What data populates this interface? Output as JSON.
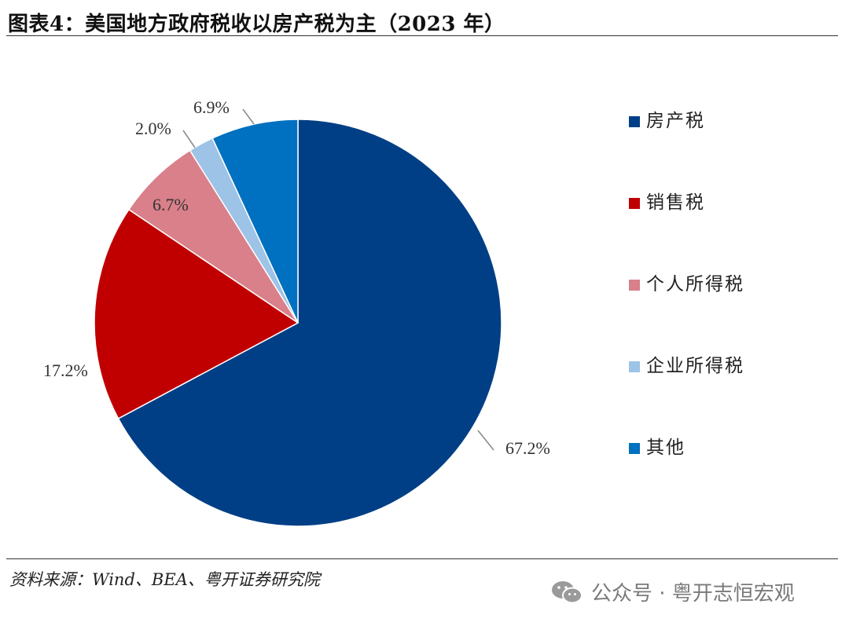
{
  "title": "图表4：美国地方政府税收以房产税为主（2023 年）",
  "source": "资料来源：Wind、BEA、粤开证券研究院",
  "watermark": "公众号 · 粤开志恒宏观",
  "chart_data": {
    "type": "pie",
    "title": "图表4：美国地方政府税收以房产税为主（2023 年）",
    "categories": [
      "房产税",
      "销售税",
      "个人所得税",
      "企业所得税",
      "其他"
    ],
    "values": [
      67.2,
      17.2,
      6.7,
      2.0,
      6.9
    ],
    "labels": [
      "67.2%",
      "17.2%",
      "6.7%",
      "2.0%",
      "6.9%"
    ],
    "colors": [
      "#003f85",
      "#c00000",
      "#d9808a",
      "#9dc3e6",
      "#0070c0"
    ],
    "start": "12 o'clock",
    "direction": "clockwise",
    "legend_position": "right"
  }
}
